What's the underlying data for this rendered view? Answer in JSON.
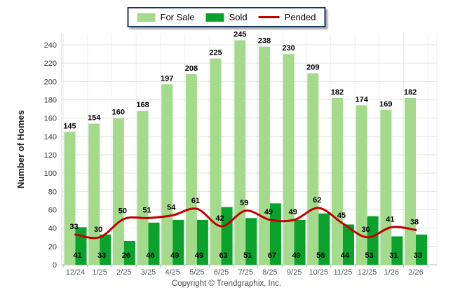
{
  "footer": {
    "copyright": "Copyright © Trendgraphix, Inc."
  },
  "colors": {
    "for_sale": "#A4DA8B",
    "sold": "#0AA22D",
    "pended": "#C10000",
    "grid_h": "#e3e3e3",
    "grid_v": "#ededed",
    "axis": "#b5b5b5",
    "left_axis": "#d9d9d9",
    "bar_label": "#000000",
    "x_label": "#4d5966",
    "y_label": "#3d3d3d",
    "legend_border": "#17375E"
  },
  "chart_data": {
    "type": "bar",
    "categories": [
      "12/24",
      "1/25",
      "2/25",
      "3/25",
      "4/25",
      "5/25",
      "6/25",
      "7/25",
      "8/25",
      "9/25",
      "10/25",
      "11/25",
      "12/25",
      "1/26",
      "2/26"
    ],
    "series": [
      {
        "name": "For Sale",
        "type": "bar",
        "color": "#A4DA8B",
        "values": [
          145,
          154,
          160,
          168,
          197,
          208,
          225,
          245,
          238,
          230,
          209,
          182,
          174,
          169,
          182
        ]
      },
      {
        "name": "Sold",
        "type": "bar",
        "color": "#0AA22D",
        "values": [
          41,
          33,
          26,
          46,
          49,
          49,
          63,
          51,
          67,
          49,
          56,
          44,
          53,
          31,
          33
        ]
      },
      {
        "name": "Pended",
        "type": "line",
        "color": "#C10000",
        "values": [
          33,
          30,
          50,
          51,
          54,
          61,
          42,
          59,
          49,
          49,
          62,
          45,
          30,
          41,
          38
        ]
      }
    ],
    "title": "",
    "xlabel": "",
    "ylabel": "Number of Homes",
    "ylim": [
      0,
      250
    ],
    "yticks": [
      0,
      20,
      40,
      60,
      80,
      100,
      120,
      140,
      160,
      180,
      200,
      220,
      240
    ],
    "grid": true,
    "legend_position": "top"
  }
}
